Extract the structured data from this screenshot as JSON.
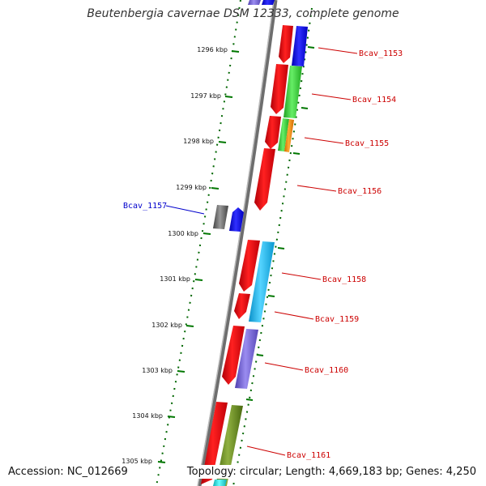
{
  "header": {
    "title": "Beutenbergia cavernae DSM 12333, complete genome"
  },
  "footer": {
    "accession": "Accession: NC_012669",
    "topology": "Topology: circular; Length: 4,669,183 bp; Genes: 4,250"
  },
  "ticks": [
    "1296 kbp",
    "1297 kbp",
    "1298 kbp",
    "1299 kbp",
    "1300 kbp",
    "1301 kbp",
    "1302 kbp",
    "1303 kbp",
    "1304 kbp",
    "1305 kbp"
  ],
  "gene_labels": [
    {
      "name": "Bcav_1153",
      "color": "#cc0000"
    },
    {
      "name": "Bcav_1154",
      "color": "#cc0000"
    },
    {
      "name": "Bcav_1155",
      "color": "#cc0000"
    },
    {
      "name": "Bcav_1156",
      "color": "#cc0000"
    },
    {
      "name": "Bcav_1157",
      "color": "#0000cc"
    },
    {
      "name": "Bcav_1158",
      "color": "#cc0000"
    },
    {
      "name": "Bcav_1159",
      "color": "#cc0000"
    },
    {
      "name": "Bcav_1160",
      "color": "#cc0000"
    },
    {
      "name": "Bcav_1161",
      "color": "#cc0000"
    }
  ],
  "colors": {
    "backbone": "#808080",
    "tick_mark": "#007700",
    "red_gene": "#e8000a",
    "blue_gene": "#1414f0",
    "green_gene": "#33cc33",
    "orange_gene": "#ff8c00",
    "gray_gene": "#666666",
    "cyan_gene": "#1ab8ee",
    "violet_gene": "#7a6ad6",
    "olive_gene": "#6b8e23",
    "aqua_gene": "#22dddd"
  }
}
